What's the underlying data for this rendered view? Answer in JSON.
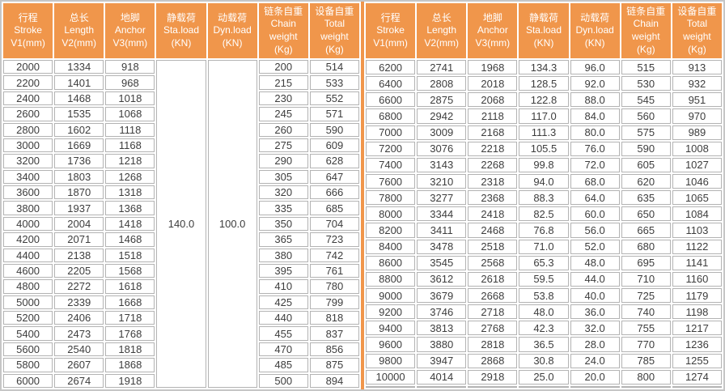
{
  "colors": {
    "accent": "#F0964B",
    "cell_border": "#B3B3B3",
    "outer_border": "#C6C6C6",
    "data_text": "#3D3D3D",
    "header_text": "#FFFFFF"
  },
  "table": {
    "column_headers": [
      {
        "lines": [
          "行程",
          "Stroke",
          "V1(mm)"
        ]
      },
      {
        "lines": [
          "总长",
          "Length",
          "V2(mm)"
        ]
      },
      {
        "lines": [
          "地脚",
          "Anchor",
          "V3(mm)"
        ]
      },
      {
        "lines": [
          "静载荷",
          "Sta.load",
          "(KN)"
        ]
      },
      {
        "lines": [
          "动载荷",
          "Dyn.load",
          "(KN)"
        ]
      },
      {
        "lines": [
          "链条自重",
          "Chain",
          "weight",
          "(Kg)"
        ]
      },
      {
        "lines": [
          "设备自重",
          "Total",
          "weight",
          "(Kg)"
        ]
      }
    ],
    "left": {
      "sta_load": "140.0",
      "dyn_load": "100.0",
      "rows": [
        [
          "2000",
          "1334",
          "918",
          "200",
          "514"
        ],
        [
          "2200",
          "1401",
          "968",
          "215",
          "533"
        ],
        [
          "2400",
          "1468",
          "1018",
          "230",
          "552"
        ],
        [
          "2600",
          "1535",
          "1068",
          "245",
          "571"
        ],
        [
          "2800",
          "1602",
          "1118",
          "260",
          "590"
        ],
        [
          "3000",
          "1669",
          "1168",
          "275",
          "609"
        ],
        [
          "3200",
          "1736",
          "1218",
          "290",
          "628"
        ],
        [
          "3400",
          "1803",
          "1268",
          "305",
          "647"
        ],
        [
          "3600",
          "1870",
          "1318",
          "320",
          "666"
        ],
        [
          "3800",
          "1937",
          "1368",
          "335",
          "685"
        ],
        [
          "4000",
          "2004",
          "1418",
          "350",
          "704"
        ],
        [
          "4200",
          "2071",
          "1468",
          "365",
          "723"
        ],
        [
          "4400",
          "2138",
          "1518",
          "380",
          "742"
        ],
        [
          "4600",
          "2205",
          "1568",
          "395",
          "761"
        ],
        [
          "4800",
          "2272",
          "1618",
          "410",
          "780"
        ],
        [
          "5000",
          "2339",
          "1668",
          "425",
          "799"
        ],
        [
          "5200",
          "2406",
          "1718",
          "440",
          "818"
        ],
        [
          "5400",
          "2473",
          "1768",
          "455",
          "837"
        ],
        [
          "5600",
          "2540",
          "1818",
          "470",
          "856"
        ],
        [
          "5800",
          "2607",
          "1868",
          "485",
          "875"
        ],
        [
          "6000",
          "2674",
          "1918",
          "500",
          "894"
        ]
      ]
    },
    "right": {
      "rows": [
        [
          "6200",
          "2741",
          "1968",
          "134.3",
          "96.0",
          "515",
          "913"
        ],
        [
          "6400",
          "2808",
          "2018",
          "128.5",
          "92.0",
          "530",
          "932"
        ],
        [
          "6600",
          "2875",
          "2068",
          "122.8",
          "88.0",
          "545",
          "951"
        ],
        [
          "6800",
          "2942",
          "2118",
          "117.0",
          "84.0",
          "560",
          "970"
        ],
        [
          "7000",
          "3009",
          "2168",
          "111.3",
          "80.0",
          "575",
          "989"
        ],
        [
          "7200",
          "3076",
          "2218",
          "105.5",
          "76.0",
          "590",
          "1008"
        ],
        [
          "7400",
          "3143",
          "2268",
          "99.8",
          "72.0",
          "605",
          "1027"
        ],
        [
          "7600",
          "3210",
          "2318",
          "94.0",
          "68.0",
          "620",
          "1046"
        ],
        [
          "7800",
          "3277",
          "2368",
          "88.3",
          "64.0",
          "635",
          "1065"
        ],
        [
          "8000",
          "3344",
          "2418",
          "82.5",
          "60.0",
          "650",
          "1084"
        ],
        [
          "8200",
          "3411",
          "2468",
          "76.8",
          "56.0",
          "665",
          "1103"
        ],
        [
          "8400",
          "3478",
          "2518",
          "71.0",
          "52.0",
          "680",
          "1122"
        ],
        [
          "8600",
          "3545",
          "2568",
          "65.3",
          "48.0",
          "695",
          "1141"
        ],
        [
          "8800",
          "3612",
          "2618",
          "59.5",
          "44.0",
          "710",
          "1160"
        ],
        [
          "9000",
          "3679",
          "2668",
          "53.8",
          "40.0",
          "725",
          "1179"
        ],
        [
          "9200",
          "3746",
          "2718",
          "48.0",
          "36.0",
          "740",
          "1198"
        ],
        [
          "9400",
          "3813",
          "2768",
          "42.3",
          "32.0",
          "755",
          "1217"
        ],
        [
          "9600",
          "3880",
          "2818",
          "36.5",
          "28.0",
          "770",
          "1236"
        ],
        [
          "9800",
          "3947",
          "2868",
          "30.8",
          "24.0",
          "785",
          "1255"
        ],
        [
          "10000",
          "4014",
          "2918",
          "25.0",
          "20.0",
          "800",
          "1274"
        ],
        [
          "",
          "",
          "",
          "",
          "",
          "",
          ""
        ]
      ]
    }
  }
}
